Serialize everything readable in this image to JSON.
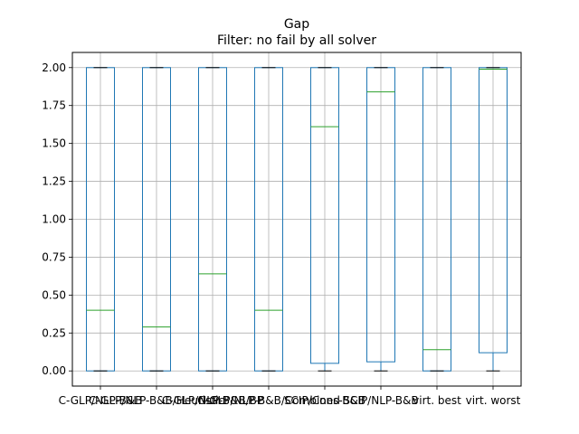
{
  "chart_data": {
    "type": "boxplot",
    "title": "Gap",
    "subtitle": "Filter: no fail by all solver",
    "xlabel": "",
    "ylabel": "",
    "ylim": [
      -0.1,
      2.1
    ],
    "yticks": [
      0.0,
      0.25,
      0.5,
      0.75,
      1.0,
      1.25,
      1.5,
      1.75,
      2.0
    ],
    "ytick_labels": [
      "0.00",
      "0.25",
      "0.50",
      "0.75",
      "1.00",
      "1.25",
      "1.50",
      "1.75",
      "2.00"
    ],
    "grid": true,
    "colors": {
      "box": "#1f77b4",
      "median": "#2ca02c",
      "whisker": "#000000",
      "grid": "#b0b0b0"
    },
    "categories": [
      "C-GLP/NLP-B&B",
      "C-GLP/NLP-B&B/Heuristic",
      "C-GLP/NLP-B&B/BP",
      "C-GLP/NLP-B&B/Combined",
      "SCIP/Cons-B&B",
      "SCIP/NLP-B&B",
      "virt. best",
      "virt. worst"
    ],
    "boxes": [
      {
        "q1": 0.0,
        "median": 0.4,
        "q3": 2.0,
        "whisker_low": 0.0,
        "whisker_high": 2.0
      },
      {
        "q1": 0.0,
        "median": 0.29,
        "q3": 2.0,
        "whisker_low": 0.0,
        "whisker_high": 2.0
      },
      {
        "q1": 0.0,
        "median": 0.64,
        "q3": 2.0,
        "whisker_low": 0.0,
        "whisker_high": 2.0
      },
      {
        "q1": 0.0,
        "median": 0.4,
        "q3": 2.0,
        "whisker_low": 0.0,
        "whisker_high": 2.0
      },
      {
        "q1": 0.05,
        "median": 1.61,
        "q3": 2.0,
        "whisker_low": 0.0,
        "whisker_high": 2.0
      },
      {
        "q1": 0.06,
        "median": 1.84,
        "q3": 2.0,
        "whisker_low": 0.0,
        "whisker_high": 2.0
      },
      {
        "q1": 0.0,
        "median": 0.14,
        "q3": 2.0,
        "whisker_low": 0.0,
        "whisker_high": 2.0
      },
      {
        "q1": 0.12,
        "median": 1.99,
        "q3": 2.0,
        "whisker_low": 0.0,
        "whisker_high": 2.0
      }
    ]
  }
}
